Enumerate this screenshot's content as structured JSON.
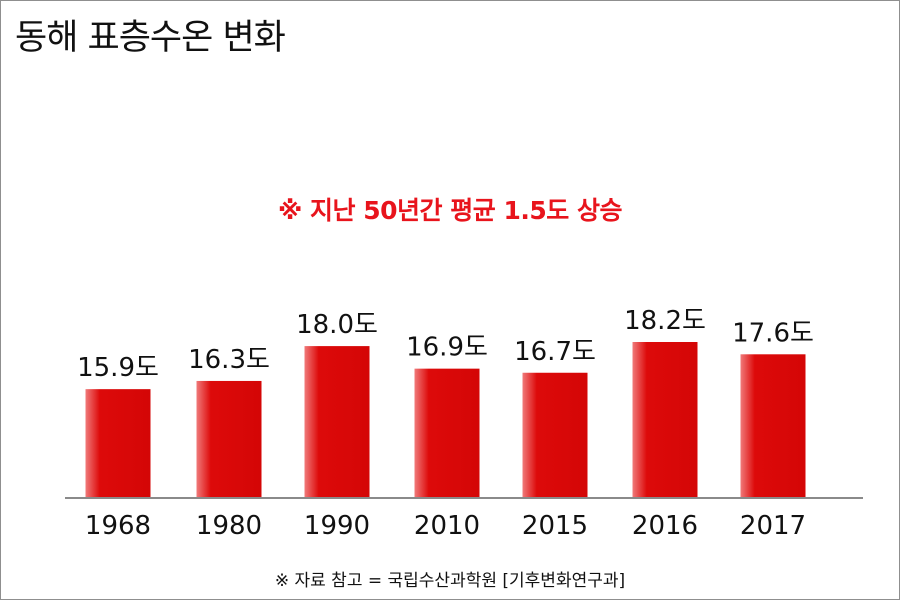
{
  "chart_data": {
    "type": "bar",
    "title": "동해 표층수온 변화",
    "subtitle": "※ 지난 50년간 평균 1.5도 상승",
    "source": "※ 자료 참고 = 국립수산과학원 [기후변화연구과]",
    "categories": [
      "1968",
      "1980",
      "1990",
      "2010",
      "2015",
      "2016",
      "2017"
    ],
    "values": [
      15.9,
      16.3,
      18.0,
      16.9,
      16.7,
      18.2,
      17.6
    ],
    "value_labels": [
      "15.9도",
      "16.3도",
      "18.0도",
      "16.9도",
      "16.7도",
      "18.2도",
      "17.6도"
    ],
    "unit": "도",
    "bar_color": "#dd0a0a",
    "axis_color": "#8a8a8a",
    "grid": false,
    "legend": "none"
  }
}
